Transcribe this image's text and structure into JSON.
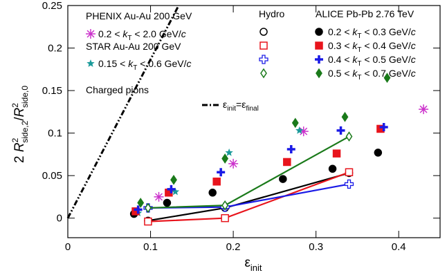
{
  "chart_data": {
    "type": "scatter",
    "xlim": [
      0,
      0.45
    ],
    "ylim": [
      -0.023,
      0.25
    ],
    "xticks": [
      0,
      0.1,
      0.2,
      0.3,
      0.4
    ],
    "yticks": [
      0,
      0.05,
      0.1,
      0.15,
      0.2,
      0.25
    ],
    "xlabel": [
      "ε",
      "init"
    ],
    "ylabel": [
      "2 ",
      "R",
      "2",
      "side,2",
      "/",
      "R",
      "2",
      "side,0"
    ],
    "annotation": "Charged pions",
    "reference_line": {
      "label": [
        "ε",
        "init",
        "=ε",
        "final"
      ],
      "color": "#000000",
      "x": [
        0,
        0.134
      ],
      "values": [
        0,
        0.25
      ]
    },
    "phenix": {
      "label": "PHENIX Au-Au 200 GeV",
      "series": [
        {
          "name": [
            "0.2 < ",
            "k",
            "T",
            " < 2.0 GeV/",
            "c"
          ],
          "color": "#cc33cc",
          "marker": "asterisk",
          "x": [
            0.11,
            0.2,
            0.285,
            0.43
          ],
          "values": [
            0.025,
            0.064,
            0.102,
            0.128
          ]
        }
      ]
    },
    "star": {
      "label": "STAR Au-Au 200 GeV",
      "series": [
        {
          "name": [
            "0.15 < ",
            "k",
            "T",
            " < 0.6 GeV/",
            "c"
          ],
          "color": "#1a9a9a",
          "marker": "star",
          "x": [
            0.085,
            0.13,
            0.195,
            0.28
          ],
          "values": [
            0.006,
            0.031,
            0.077,
            0.103
          ]
        }
      ]
    },
    "hydro": {
      "label": "Hydro",
      "series": [
        {
          "color": "#000000",
          "marker": "circle",
          "x": [
            0.097,
            0.19,
            0.34
          ],
          "values": [
            -0.003,
            0.012,
            0.053
          ]
        },
        {
          "color": "#e8141c",
          "marker": "square",
          "x": [
            0.097,
            0.19,
            0.34
          ],
          "values": [
            -0.004,
            0.0,
            0.054
          ]
        },
        {
          "color": "#1a1ae6",
          "marker": "cross",
          "x": [
            0.097,
            0.19,
            0.34
          ],
          "values": [
            0.012,
            0.013,
            0.04
          ]
        },
        {
          "color": "#1a7a1a",
          "marker": "diamond",
          "x": [
            0.097,
            0.19,
            0.34
          ],
          "values": [
            0.012,
            0.015,
            0.096
          ]
        }
      ]
    },
    "alice": {
      "label": "ALICE Pb-Pb 2.76 TeV",
      "series": [
        {
          "name": [
            "0.2 < ",
            "k",
            "T",
            " < 0.3 GeV/",
            "c"
          ],
          "color": "#000000",
          "marker": "circle",
          "x": [
            0.08,
            0.12,
            0.175,
            0.26,
            0.32,
            0.375
          ],
          "values": [
            0.005,
            0.018,
            0.03,
            0.046,
            0.058,
            0.077
          ]
        },
        {
          "name": [
            "0.3 < ",
            "k",
            "T",
            " < 0.4 GeV/",
            "c"
          ],
          "color": "#e8141c",
          "marker": "square",
          "x": [
            0.082,
            0.122,
            0.18,
            0.265,
            0.325,
            0.378
          ],
          "values": [
            0.008,
            0.03,
            0.043,
            0.066,
            0.076,
            0.105
          ]
        },
        {
          "name": [
            "0.4 < ",
            "k",
            "T",
            " < 0.5 GeV/",
            "c"
          ],
          "color": "#1a1ae6",
          "marker": "cross",
          "x": [
            0.085,
            0.125,
            0.185,
            0.27,
            0.33,
            0.382
          ],
          "values": [
            0.01,
            0.034,
            0.054,
            0.081,
            0.103,
            0.107
          ]
        },
        {
          "name": [
            "0.5 < ",
            "k",
            "T",
            " < 0.7 GeV/",
            "c"
          ],
          "color": "#1a7a1a",
          "marker": "diamond",
          "x": [
            0.088,
            0.128,
            0.19,
            0.275,
            0.335,
            0.386
          ],
          "values": [
            0.018,
            0.045,
            0.07,
            0.112,
            0.119,
            0.165
          ]
        }
      ]
    }
  }
}
